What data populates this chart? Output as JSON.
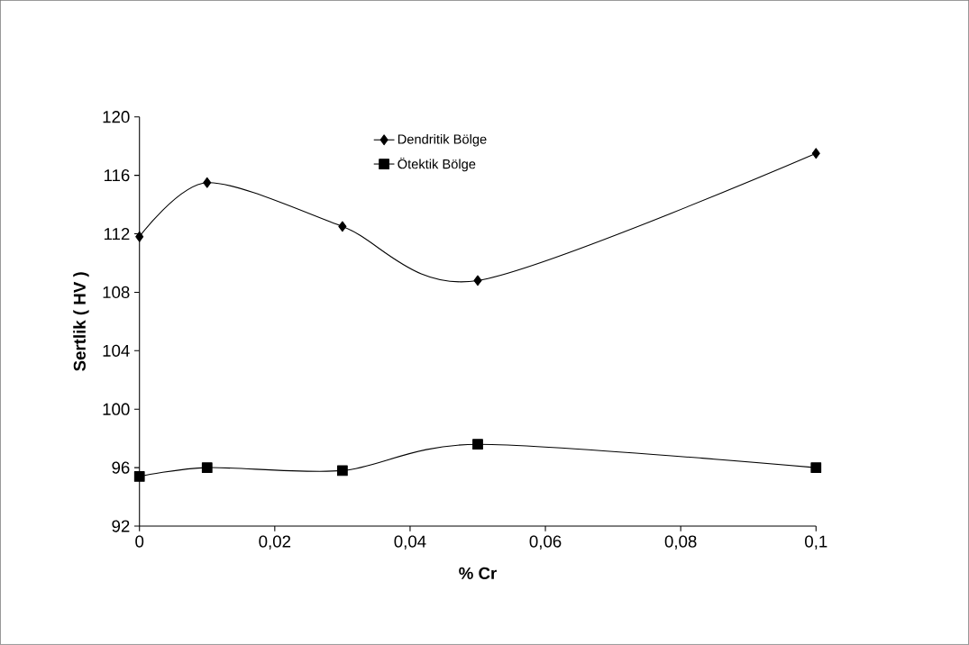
{
  "chart_data": {
    "type": "line",
    "xlabel": "% Cr",
    "ylabel": "Sertlik ( HV )",
    "x": [
      0,
      0.01,
      0.03,
      0.05,
      0.1
    ],
    "series": [
      {
        "name": "Dendritik Bölge",
        "color": "#000000",
        "marker": "diamond",
        "values": [
          111.8,
          115.5,
          112.5,
          108.8,
          117.5
        ]
      },
      {
        "name": "Ötektik Bölge",
        "color": "#000000",
        "marker": "square",
        "values": [
          95.4,
          96.0,
          95.8,
          97.6,
          96.0
        ]
      }
    ],
    "xlim": [
      0,
      0.1
    ],
    "xticks": [
      0,
      {
        "value": 0.02,
        "label": "0,02"
      },
      {
        "value": 0.04,
        "label": "0,04"
      },
      {
        "value": 0.06,
        "label": "0,06"
      },
      {
        "value": 0.08,
        "label": "0,08"
      },
      {
        "value": 0.1,
        "label": "0,1"
      }
    ],
    "ylim": [
      92,
      120
    ],
    "yticks": [
      92,
      96,
      100,
      104,
      108,
      112,
      116,
      120
    ],
    "grid": false,
    "legend": "top",
    "line_style": "solid"
  }
}
